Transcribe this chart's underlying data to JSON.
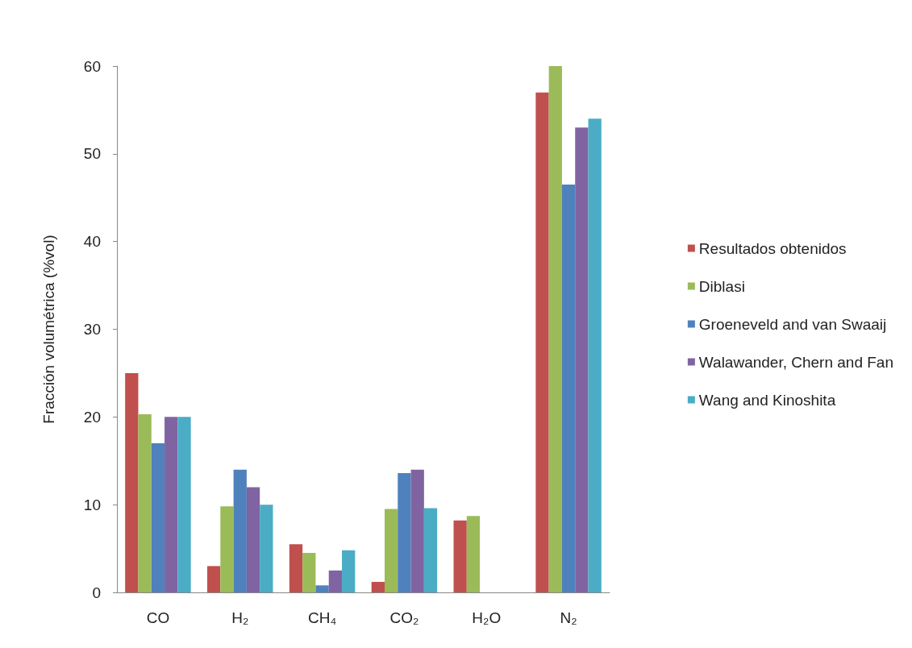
{
  "chart_data": {
    "type": "bar",
    "ylabel": "Fracción volumétrica (%vol)",
    "categories": [
      "CO",
      "H₂",
      "CH₄",
      "CO₂",
      "H₂O",
      "N₂"
    ],
    "series": [
      {
        "name": "Resultados obtenidos",
        "color": "#c0504d",
        "values": [
          25,
          3,
          5.5,
          1.2,
          8.2,
          57
        ]
      },
      {
        "name": "Diblasi",
        "color": "#9bbb59",
        "values": [
          20.3,
          9.8,
          4.5,
          9.5,
          8.7,
          60
        ]
      },
      {
        "name": "Groeneveld and van Swaaij",
        "color": "#4f81bd",
        "values": [
          17,
          14,
          0.8,
          13.6,
          null,
          46.5
        ]
      },
      {
        "name": "Walawander, Chern and Fan",
        "color": "#8064a2",
        "values": [
          20,
          12,
          2.5,
          14,
          null,
          53
        ]
      },
      {
        "name": "Wang and Kinoshita",
        "color": "#4bacc6",
        "values": [
          20,
          10,
          4.8,
          9.6,
          null,
          54
        ]
      }
    ],
    "ylim": [
      0,
      60
    ],
    "yticks": [
      0,
      10,
      20,
      30,
      40,
      50,
      60
    ],
    "grid": false,
    "legend": "right"
  }
}
